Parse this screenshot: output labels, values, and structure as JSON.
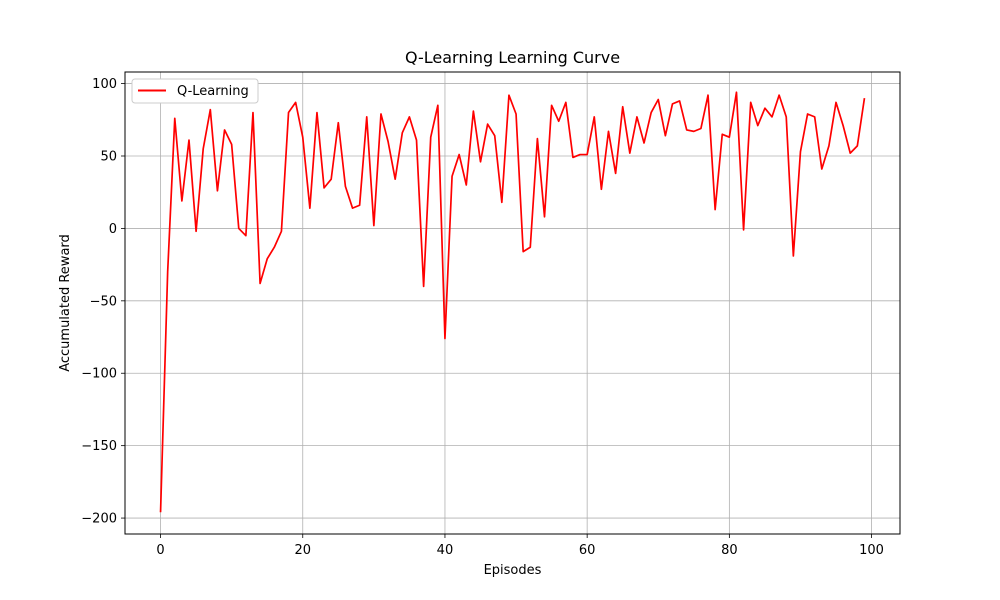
{
  "chart_data": {
    "type": "line",
    "title": "Q-Learning Learning Curve",
    "xlabel": "Episodes",
    "ylabel": "Accumulated Reward",
    "xlim": [
      -5,
      104
    ],
    "ylim": [
      -211,
      108
    ],
    "xticks": [
      0,
      20,
      40,
      60,
      80,
      100
    ],
    "yticks": [
      -200,
      -150,
      -100,
      -50,
      0,
      50,
      100
    ],
    "xtick_labels": [
      "0",
      "20",
      "40",
      "60",
      "80",
      "100"
    ],
    "ytick_labels": [
      "−200",
      "−150",
      "−100",
      "−50",
      "0",
      "50",
      "100"
    ],
    "grid": true,
    "legend_position": "top-left",
    "series": [
      {
        "name": "Q-Learning",
        "color": "#ff0000",
        "x": [
          0,
          1,
          2,
          3,
          4,
          5,
          6,
          7,
          8,
          9,
          10,
          11,
          12,
          13,
          14,
          15,
          16,
          17,
          18,
          19,
          20,
          21,
          22,
          23,
          24,
          25,
          26,
          27,
          28,
          29,
          30,
          31,
          32,
          33,
          34,
          35,
          36,
          37,
          38,
          39,
          40,
          41,
          42,
          43,
          44,
          45,
          46,
          47,
          48,
          49,
          50,
          51,
          52,
          53,
          54,
          55,
          56,
          57,
          58,
          59,
          60,
          61,
          62,
          63,
          64,
          65,
          66,
          67,
          68,
          69,
          70,
          71,
          72,
          73,
          74,
          75,
          76,
          77,
          78,
          79,
          80,
          81,
          82,
          83,
          84,
          85,
          86,
          87,
          88,
          89,
          90,
          91,
          92,
          93,
          94,
          95,
          96,
          97,
          98,
          99
        ],
        "values": [
          -196,
          -30,
          76,
          19,
          61,
          -2,
          55,
          82,
          26,
          68,
          58,
          0,
          -5,
          80,
          -38,
          -21,
          -13,
          -2,
          80,
          87,
          63,
          14,
          80,
          28,
          34,
          73,
          29,
          14,
          16,
          77,
          2,
          79,
          60,
          34,
          66,
          77,
          61,
          -40,
          63,
          85,
          -76,
          36,
          51,
          30,
          81,
          46,
          72,
          64,
          18,
          92,
          79,
          -16,
          -13,
          62,
          8,
          85,
          74,
          87,
          49,
          51,
          51,
          77,
          27,
          67,
          38,
          84,
          52,
          77,
          59,
          80,
          89,
          64,
          86,
          88,
          68,
          67,
          69,
          92,
          13,
          65,
          63,
          94,
          -1,
          87,
          71,
          83,
          77,
          92,
          77,
          -19,
          53,
          79,
          77,
          41,
          57,
          87,
          71,
          52,
          57,
          90
        ]
      }
    ]
  }
}
